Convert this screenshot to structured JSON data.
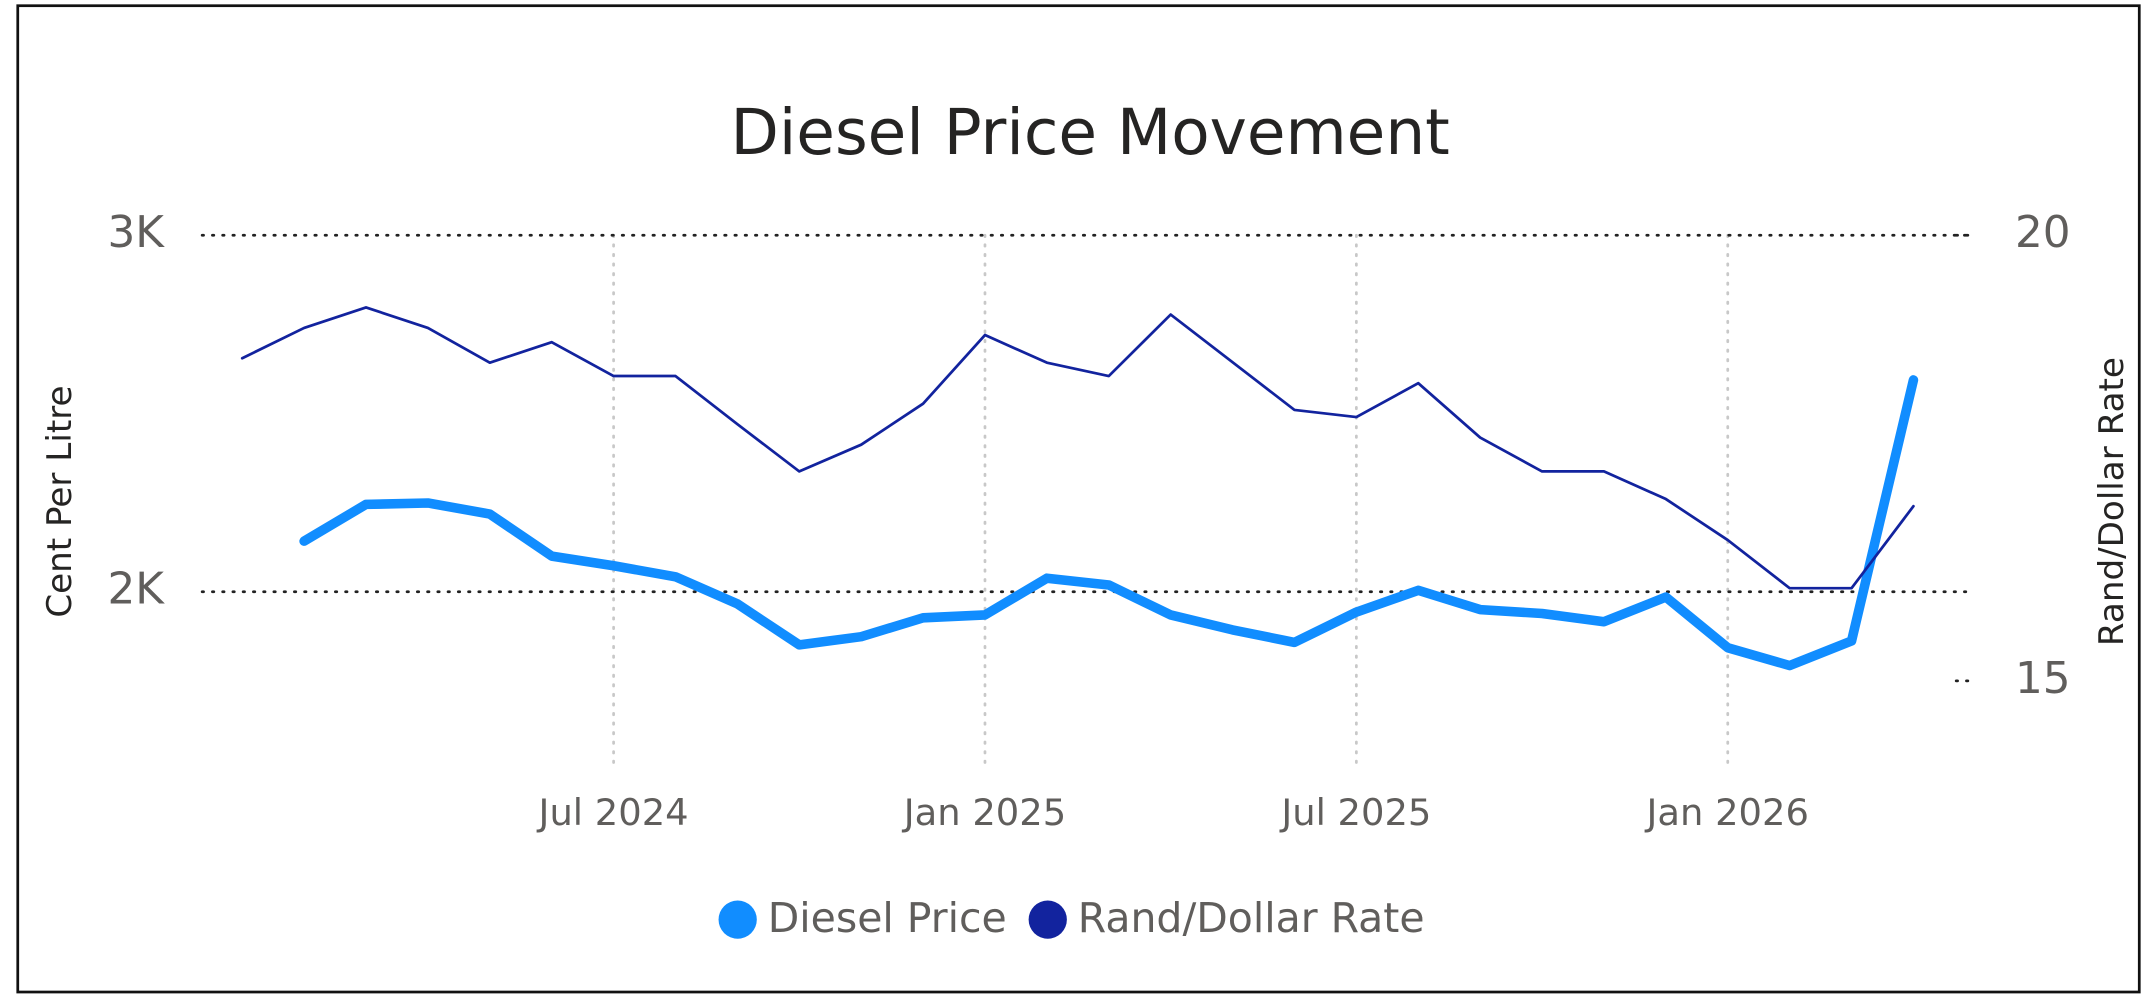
{
  "chart_data": {
    "type": "line",
    "title": "Diesel Price Movement",
    "y_label": "Cent Per Litre",
    "y2_label": "Rand/Dollar Rate",
    "xlim": [
      "2023-12",
      "2026-05"
    ],
    "xticks": [
      {
        "value": "2024-07",
        "label": "Jul 2024"
      },
      {
        "value": "2025-01",
        "label": "Jan 2025"
      },
      {
        "value": "2025-07",
        "label": "Jul 2025"
      },
      {
        "value": "2026-01",
        "label": "Jan 2026"
      }
    ],
    "ylim": [
      1500,
      3000
    ],
    "yticks": [
      {
        "value": 2000,
        "label": "2K"
      },
      {
        "value": 3000,
        "label": "3K"
      }
    ],
    "y2lim": [
      14,
      20
    ],
    "y2ticks": [
      15,
      20
    ],
    "grid": true,
    "legend": "bottom",
    "series": [
      {
        "name": "Diesel Price",
        "color": "#118dff",
        "x": [
          "2024-02",
          "2024-03",
          "2024-04",
          "2024-05",
          "2024-06",
          "2024-07",
          "2024-08",
          "2024-09",
          "2024-10",
          "2024-11",
          "2024-12",
          "2025-01",
          "2025-02",
          "2025-03",
          "2025-04",
          "2025-05",
          "2025-06",
          "2025-07",
          "2025-08",
          "2025-09",
          "2025-10",
          "2025-11",
          "2025-12",
          "2026-01",
          "2026-02",
          "2026-03",
          "2026-04"
        ],
        "values": [
          2142,
          2245,
          2249,
          2218,
          2100,
          2073,
          2042,
          1966,
          1851,
          1874,
          1927,
          1935,
          2038,
          2019,
          1935,
          1893,
          1858,
          1943,
          2004,
          1950,
          1939,
          1916,
          1985,
          1843,
          1793,
          1862,
          2594
        ]
      },
      {
        "name": "Rand/Dollar Rate",
        "color": "#12239e",
        "axis": "y2",
        "x": [
          "2024-01",
          "2024-02",
          "2024-03",
          "2024-04",
          "2024-05",
          "2024-06",
          "2024-07",
          "2024-08",
          "2024-09",
          "2024-10",
          "2024-11",
          "2024-12",
          "2025-01",
          "2025-02",
          "2025-03",
          "2025-04",
          "2025-06",
          "2025-07",
          "2025-08",
          "2025-09",
          "2025-10",
          "2025-11",
          "2025-12",
          "2026-01",
          "2026-02",
          "2026-03",
          "2026-04"
        ],
        "values": [
          18.62,
          18.96,
          19.19,
          18.96,
          18.57,
          18.8,
          18.42,
          18.42,
          17.88,
          17.35,
          17.65,
          18.11,
          18.88,
          18.57,
          18.42,
          19.11,
          18.04,
          17.96,
          18.34,
          17.73,
          17.35,
          17.35,
          17.04,
          16.58,
          16.04,
          16.04,
          16.96
        ]
      }
    ]
  }
}
